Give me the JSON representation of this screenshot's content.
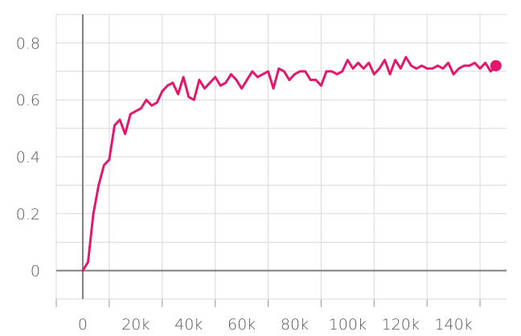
{
  "chart_data": {
    "type": "line",
    "title": "",
    "xlabel": "",
    "ylabel": "",
    "xlim": [
      -10000,
      160000
    ],
    "ylim": [
      -0.1,
      0.9
    ],
    "x_ticks": [
      {
        "value": 0,
        "label": "0"
      },
      {
        "value": 20000,
        "label": "20k"
      },
      {
        "value": 40000,
        "label": "40k"
      },
      {
        "value": 60000,
        "label": "60k"
      },
      {
        "value": 80000,
        "label": "80k"
      },
      {
        "value": 100000,
        "label": "100k"
      },
      {
        "value": 120000,
        "label": "120k"
      },
      {
        "value": 140000,
        "label": "140k"
      }
    ],
    "y_ticks": [
      {
        "value": 0,
        "label": "0"
      },
      {
        "value": 0.2,
        "label": "0.2"
      },
      {
        "value": 0.4,
        "label": "0.4"
      },
      {
        "value": 0.6,
        "label": "0.6"
      },
      {
        "value": 0.8,
        "label": "0.8"
      }
    ],
    "grid": true,
    "series": [
      {
        "color": "#e3186d",
        "x": [
          0,
          2000,
          4000,
          6000,
          8000,
          10000,
          12000,
          14000,
          16000,
          18000,
          20000,
          22000,
          24000,
          26000,
          28000,
          30000,
          32000,
          34000,
          36000,
          38000,
          40000,
          42000,
          44000,
          46000,
          48000,
          50000,
          52000,
          54000,
          56000,
          58000,
          60000,
          62000,
          64000,
          66000,
          68000,
          70000,
          72000,
          74000,
          76000,
          78000,
          80000,
          82000,
          84000,
          86000,
          88000,
          90000,
          92000,
          94000,
          96000,
          98000,
          100000,
          102000,
          104000,
          106000,
          108000,
          110000,
          112000,
          114000,
          116000,
          118000,
          120000,
          122000,
          124000,
          126000,
          128000,
          130000,
          132000,
          134000,
          136000,
          138000,
          140000,
          142000,
          144000,
          146000,
          148000,
          150000,
          152000,
          154000,
          156000
        ],
        "values": [
          0.0,
          0.03,
          0.2,
          0.3,
          0.37,
          0.39,
          0.51,
          0.53,
          0.48,
          0.55,
          0.56,
          0.57,
          0.6,
          0.58,
          0.59,
          0.63,
          0.65,
          0.66,
          0.62,
          0.68,
          0.61,
          0.6,
          0.67,
          0.64,
          0.66,
          0.68,
          0.65,
          0.66,
          0.69,
          0.67,
          0.64,
          0.67,
          0.7,
          0.68,
          0.69,
          0.7,
          0.64,
          0.71,
          0.7,
          0.67,
          0.69,
          0.7,
          0.7,
          0.67,
          0.67,
          0.65,
          0.7,
          0.7,
          0.69,
          0.7,
          0.74,
          0.71,
          0.73,
          0.71,
          0.73,
          0.69,
          0.71,
          0.74,
          0.69,
          0.74,
          0.71,
          0.75,
          0.72,
          0.71,
          0.72,
          0.71,
          0.71,
          0.72,
          0.71,
          0.73,
          0.69,
          0.71,
          0.72,
          0.72,
          0.73,
          0.71,
          0.73,
          0.7,
          0.72
        ]
      }
    ],
    "end_marker": {
      "x": 156000,
      "y": 0.72
    }
  }
}
